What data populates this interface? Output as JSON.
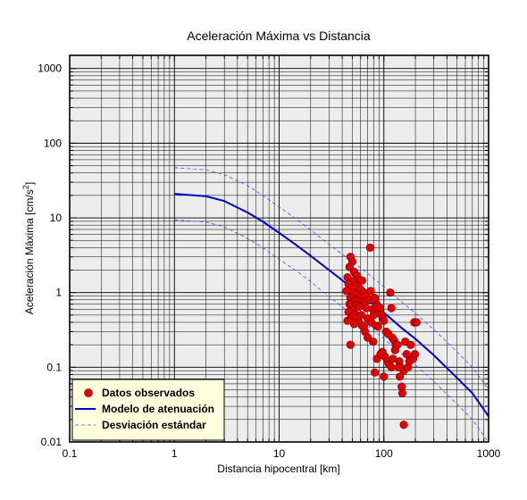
{
  "chart_data": {
    "type": "scatter",
    "title": "Aceleración Máxima vs Distancia",
    "xlabel": "Distancia hipocentral [km]",
    "ylabel_main": "Aceleración Máxima [cm/s",
    "ylabel_sup": "2",
    "ylabel_end": "]",
    "xscale": "log",
    "yscale": "log",
    "xlim": [
      0.1,
      1000
    ],
    "ylim": [
      0.01,
      1500
    ],
    "x_ticks": [
      {
        "value": 0.1,
        "label": "0.1"
      },
      {
        "value": 1,
        "label": "1"
      },
      {
        "value": 10,
        "label": "10"
      },
      {
        "value": 100,
        "label": "100"
      },
      {
        "value": 1000,
        "label": "1000"
      }
    ],
    "y_ticks": [
      {
        "value": 0.01,
        "label": "0.01"
      },
      {
        "value": 0.1,
        "label": "0.1"
      },
      {
        "value": 1,
        "label": "1"
      },
      {
        "value": 10,
        "label": "10"
      },
      {
        "value": 100,
        "label": "100"
      },
      {
        "value": 1000,
        "label": "1000"
      }
    ],
    "grid": true,
    "legend_position": "bottom-left",
    "colors": {
      "points": "#e00000",
      "model": "#0000cc",
      "std": "#4a4aff",
      "plot_bg": "#ececec",
      "legend_bg": "#ffffdd"
    },
    "series": [
      {
        "name": "Datos observados",
        "kind": "scatter",
        "points": [
          [
            48,
            3.0
          ],
          [
            50,
            2.6
          ],
          [
            47,
            2.2
          ],
          [
            52,
            1.9
          ],
          [
            55,
            1.7
          ],
          [
            45,
            1.6
          ],
          [
            58,
            1.5
          ],
          [
            50,
            1.4
          ],
          [
            62,
            1.45
          ],
          [
            46,
            1.3
          ],
          [
            53,
            1.25
          ],
          [
            57,
            1.2
          ],
          [
            49,
            1.15
          ],
          [
            60,
            1.1
          ],
          [
            44,
            1.05
          ],
          [
            51,
            1.0
          ],
          [
            55,
            0.95
          ],
          [
            59,
            0.9
          ],
          [
            48,
            0.85
          ],
          [
            52,
            0.8
          ],
          [
            56,
            0.78
          ],
          [
            63,
            0.75
          ],
          [
            47,
            0.7
          ],
          [
            54,
            0.68
          ],
          [
            58,
            0.65
          ],
          [
            50,
            0.6
          ],
          [
            46,
            0.55
          ],
          [
            53,
            0.52
          ],
          [
            61,
            0.5
          ],
          [
            49,
            0.47
          ],
          [
            55,
            0.45
          ],
          [
            45,
            0.42
          ],
          [
            58,
            0.4
          ],
          [
            52,
            0.38
          ],
          [
            64,
            0.36
          ],
          [
            48,
            0.2
          ],
          [
            65,
            1.0
          ],
          [
            68,
            0.9
          ],
          [
            72,
            0.8
          ],
          [
            75,
            1.05
          ],
          [
            78,
            0.6
          ],
          [
            80,
            0.5
          ],
          [
            70,
            0.45
          ],
          [
            76,
            0.4
          ],
          [
            82,
            0.85
          ],
          [
            85,
            0.7
          ],
          [
            88,
            0.65
          ],
          [
            90,
            0.55
          ],
          [
            74,
            4.0
          ],
          [
            66,
            0.3
          ],
          [
            70,
            0.25
          ],
          [
            79,
            0.22
          ],
          [
            84,
            0.36
          ],
          [
            88,
            0.35
          ],
          [
            95,
            0.5
          ],
          [
            98,
            0.45
          ],
          [
            100,
            0.42
          ],
          [
            105,
            0.3
          ],
          [
            110,
            0.28
          ],
          [
            115,
            1.0
          ],
          [
            118,
            0.62
          ],
          [
            120,
            0.25
          ],
          [
            125,
            0.23
          ],
          [
            130,
            0.2
          ],
          [
            92,
            0.62
          ],
          [
            97,
            0.16
          ],
          [
            102,
            0.14
          ],
          [
            108,
            0.12
          ],
          [
            112,
            0.11
          ],
          [
            118,
            0.1
          ],
          [
            122,
            0.13
          ],
          [
            128,
            0.17
          ],
          [
            135,
            0.2
          ],
          [
            140,
            0.12
          ],
          [
            145,
            0.1
          ],
          [
            142,
            0.075
          ],
          [
            148,
            0.055
          ],
          [
            150,
            0.045
          ],
          [
            155,
            0.09
          ],
          [
            160,
            0.22
          ],
          [
            165,
            0.15
          ],
          [
            170,
            0.1
          ],
          [
            175,
            0.12
          ],
          [
            180,
            0.2
          ],
          [
            190,
            0.13
          ],
          [
            198,
            0.15
          ],
          [
            195,
            0.4
          ],
          [
            205,
            0.4
          ],
          [
            155,
            0.017
          ],
          [
            82,
            0.085
          ],
          [
            86,
            0.13
          ],
          [
            93,
            0.15
          ],
          [
            100,
            0.075
          ],
          [
            138,
            0.1
          ],
          [
            62,
            0.36
          ],
          [
            68,
            0.62
          ]
        ]
      },
      {
        "name": "Modelo de atenuación",
        "kind": "line",
        "points": [
          [
            1,
            21
          ],
          [
            2,
            19.5
          ],
          [
            3,
            16.8
          ],
          [
            5,
            11.8
          ],
          [
            7,
            8.9
          ],
          [
            10,
            6.3
          ],
          [
            15,
            4.2
          ],
          [
            20,
            3.1
          ],
          [
            30,
            2.0
          ],
          [
            50,
            1.15
          ],
          [
            70,
            0.8
          ],
          [
            100,
            0.54
          ],
          [
            150,
            0.33
          ],
          [
            200,
            0.24
          ],
          [
            300,
            0.145
          ],
          [
            500,
            0.072
          ],
          [
            700,
            0.045
          ],
          [
            1000,
            0.022
          ]
        ]
      },
      {
        "name": "Desviación estándar",
        "kind": "dashed",
        "points": [
          [
            1,
            47
          ],
          [
            2,
            44
          ],
          [
            3,
            38
          ],
          [
            5,
            27
          ],
          [
            7,
            20
          ],
          [
            10,
            14
          ],
          [
            15,
            9.4
          ],
          [
            20,
            6.9
          ],
          [
            30,
            4.4
          ],
          [
            50,
            2.6
          ],
          [
            70,
            1.8
          ],
          [
            100,
            1.2
          ],
          [
            150,
            0.74
          ],
          [
            200,
            0.53
          ],
          [
            300,
            0.32
          ],
          [
            500,
            0.16
          ],
          [
            700,
            0.1
          ],
          [
            1000,
            0.05
          ]
        ]
      },
      {
        "kind": "dashed",
        "points": [
          [
            1,
            9.4
          ],
          [
            2,
            8.8
          ],
          [
            3,
            7.6
          ],
          [
            5,
            5.3
          ],
          [
            7,
            4.0
          ],
          [
            10,
            2.8
          ],
          [
            15,
            1.9
          ],
          [
            20,
            1.4
          ],
          [
            30,
            0.88
          ],
          [
            50,
            0.51
          ],
          [
            70,
            0.36
          ],
          [
            100,
            0.24
          ],
          [
            150,
            0.148
          ],
          [
            200,
            0.107
          ],
          [
            300,
            0.065
          ],
          [
            500,
            0.032
          ],
          [
            700,
            0.02
          ],
          [
            1000,
            0.0098
          ]
        ]
      }
    ],
    "legend": [
      {
        "label": "Datos observados",
        "symbol": "dot"
      },
      {
        "label": "Modelo de atenuación",
        "symbol": "line"
      },
      {
        "label": "Desviación estándar",
        "symbol": "dashed"
      }
    ]
  }
}
